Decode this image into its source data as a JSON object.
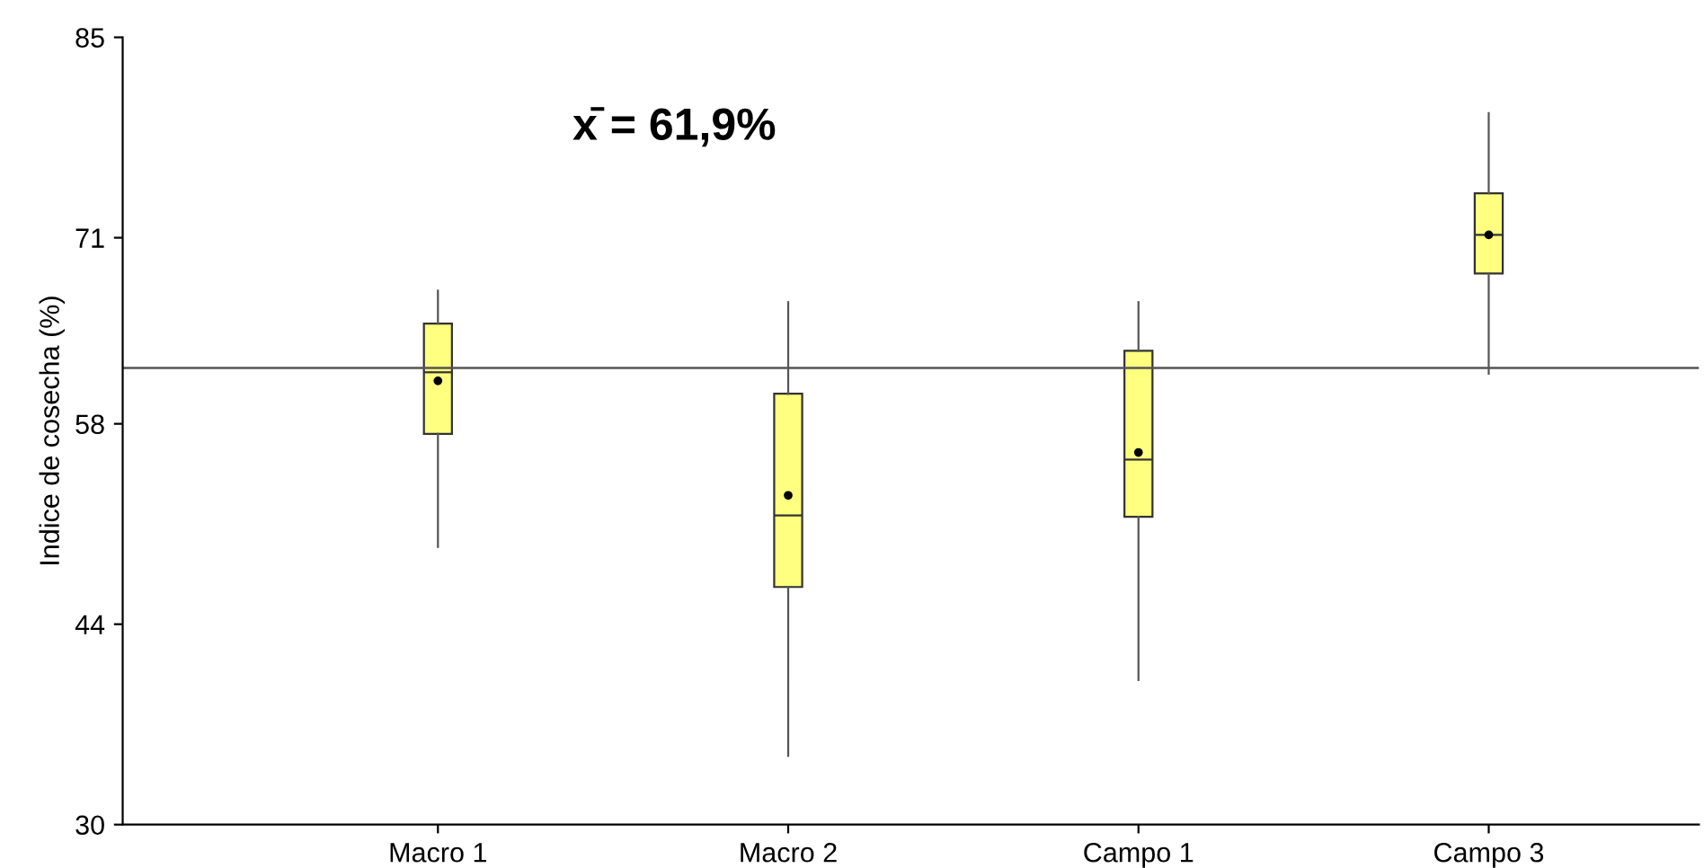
{
  "chart_data": {
    "type": "box",
    "ylabel": "Indice de cosecha (%)",
    "categories": [
      "Macro 1",
      "Macro 2",
      "Campo 1",
      "Campo 3"
    ],
    "boxes": [
      {
        "low": 49.4,
        "q1": 57.3,
        "median": 61.6,
        "q3": 65.0,
        "high": 67.3,
        "mean": 61.0
      },
      {
        "low": 34.8,
        "q1": 46.6,
        "median": 51.6,
        "q3": 60.1,
        "high": 66.5,
        "mean": 53.0
      },
      {
        "low": 40.1,
        "q1": 51.5,
        "median": 55.5,
        "q3": 63.1,
        "high": 66.5,
        "mean": 56.0
      },
      {
        "low": 61.5,
        "q1": 68.5,
        "median": 71.2,
        "q3": 74.1,
        "high": 79.7,
        "mean": 71.2
      }
    ],
    "color": "#ffff80",
    "ylim": [
      30,
      85
    ],
    "yticks": [
      30,
      44,
      58,
      71,
      85
    ],
    "ref_lines": [
      {
        "axis": "y",
        "value": 61.9,
        "label": null,
        "color": "#555555"
      }
    ],
    "annotations": [
      "x̄ = 61,9%"
    ],
    "grid": false,
    "legend": false
  }
}
